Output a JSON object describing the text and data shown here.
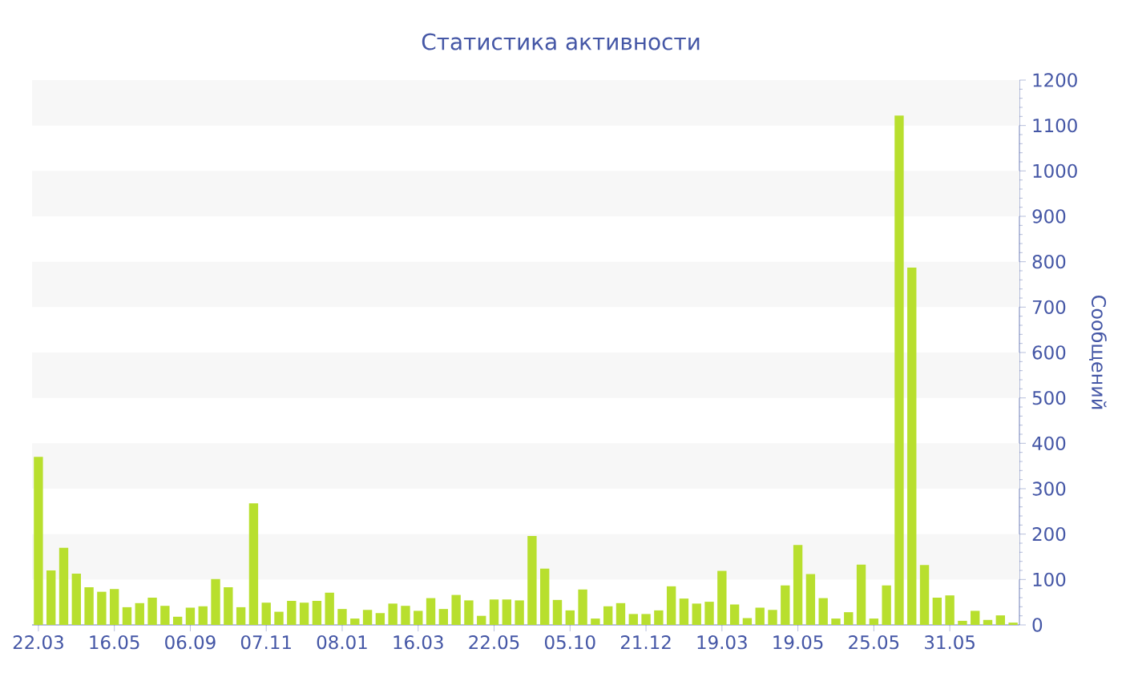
{
  "chart_data": {
    "type": "bar",
    "title": "Статистика активности",
    "ylabel": "Сообщений",
    "categories": [
      "22.03",
      null,
      null,
      null,
      null,
      null,
      "16.05",
      null,
      null,
      null,
      null,
      null,
      "06.09",
      null,
      null,
      null,
      null,
      null,
      "07.11",
      null,
      null,
      null,
      null,
      null,
      "08.01",
      null,
      null,
      null,
      null,
      null,
      "16.03",
      null,
      null,
      null,
      null,
      null,
      "22.05",
      null,
      null,
      null,
      null,
      null,
      "05.10",
      null,
      null,
      null,
      null,
      null,
      "21.12",
      null,
      null,
      null,
      null,
      null,
      "19.03",
      null,
      null,
      null,
      null,
      null,
      "19.05",
      null,
      null,
      null,
      null,
      null,
      "25.05",
      null,
      null,
      null,
      null,
      null,
      "31.05",
      null,
      null,
      null,
      null,
      null
    ],
    "values": [
      370,
      120,
      170,
      113,
      83,
      73,
      79,
      39,
      48,
      60,
      42,
      18,
      38,
      41,
      101,
      83,
      39,
      268,
      49,
      29,
      53,
      49,
      53,
      71,
      35,
      14,
      33,
      26,
      47,
      42,
      31,
      59,
      35,
      66,
      54,
      20,
      56,
      56,
      54,
      196,
      124,
      55,
      32,
      78,
      14,
      41,
      48,
      24,
      24,
      32,
      85,
      58,
      47,
      51,
      119,
      45,
      15,
      38,
      33,
      87,
      176,
      112,
      59,
      14,
      28,
      133,
      14,
      87,
      1122,
      787,
      132,
      60,
      65,
      9,
      31,
      11,
      21,
      5
    ],
    "color": "#b8df2e",
    "ylim": [
      0,
      1200
    ],
    "yticks": [
      0,
      100,
      200,
      300,
      400,
      500,
      600,
      700,
      800,
      900,
      1000,
      1100,
      1200
    ],
    "bands": [
      {
        "axis": "y",
        "from": 100,
        "to": 200,
        "color": "#f7f7f7"
      },
      {
        "axis": "y",
        "from": 300,
        "to": 400,
        "color": "#f7f7f7"
      },
      {
        "axis": "y",
        "from": 500,
        "to": 600,
        "color": "#f7f7f7"
      },
      {
        "axis": "y",
        "from": 700,
        "to": 800,
        "color": "#f7f7f7"
      },
      {
        "axis": "y",
        "from": 900,
        "to": 1000,
        "color": "#f7f7f7"
      },
      {
        "axis": "y",
        "from": 1100,
        "to": 1200,
        "color": "#f7f7f7"
      }
    ]
  }
}
